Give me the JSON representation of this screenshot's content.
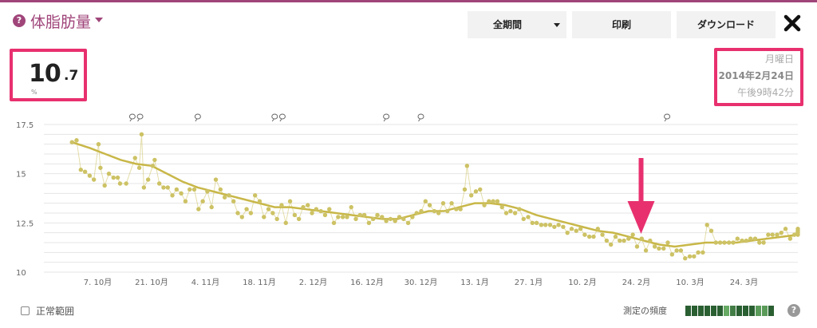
{
  "header": {
    "help_glyph": "?",
    "title": "体脂肪量",
    "period_button": "全期間",
    "print_button": "印刷",
    "download_button": "ダウンロード",
    "close_glyph": "✖"
  },
  "current": {
    "value_int": "10",
    "value_dec": ".7",
    "unit": "%"
  },
  "date": {
    "weekday": "月曜日",
    "date": "2014年2月24日",
    "time": "午後9時42分"
  },
  "footer": {
    "normal_range_label": "正常範囲",
    "frequency_label": "測定の頻度",
    "help_glyph": "?",
    "frequency_levels": [
      0.9,
      0.9,
      0.9,
      0.9,
      0.9,
      0.9,
      0.4,
      0.7,
      0.9,
      0.9,
      0.9,
      0.5,
      0.5,
      0.9
    ]
  },
  "colors": {
    "brand": "#a0457a",
    "highlight": "#e8306f",
    "trend": "#c8b748",
    "points": "#cdc264"
  },
  "chart_data": {
    "type": "line",
    "y_ticks": [
      "17.5",
      "15",
      "12.5",
      "10"
    ],
    "ylim": [
      10,
      17.5
    ],
    "x_ticks": [
      {
        "label": "7. 10月",
        "day": 14
      },
      {
        "label": "21. 10月",
        "day": 28
      },
      {
        "label": "4. 11月",
        "day": 42
      },
      {
        "label": "18. 11月",
        "day": 56
      },
      {
        "label": "2. 12月",
        "day": 70
      },
      {
        "label": "16. 12月",
        "day": 84
      },
      {
        "label": "30. 12月",
        "day": 98
      },
      {
        "label": "13. 1月",
        "day": 112
      },
      {
        "label": "27. 1月",
        "day": 126
      },
      {
        "label": "10. 2月",
        "day": 140
      },
      {
        "label": "24. 2月",
        "day": 154
      },
      {
        "label": "10. 3月",
        "day": 168
      },
      {
        "label": "24. 3月",
        "day": 182
      }
    ],
    "xlim": [
      0,
      196
    ],
    "comment_markers": [
      23,
      25,
      40,
      60,
      62,
      89,
      98,
      162
    ],
    "highlight_day": 154,
    "series": [
      {
        "points": [
          [
            7.3,
            16.6
          ],
          [
            8.5,
            16.7
          ],
          [
            9.6,
            15.2
          ],
          [
            10.7,
            15.1
          ],
          [
            11.9,
            14.9
          ],
          [
            13,
            14.7
          ],
          [
            14.2,
            16.5
          ],
          [
            14.7,
            15.3
          ],
          [
            15.8,
            14.4
          ],
          [
            16.9,
            15
          ],
          [
            18.1,
            14.8
          ],
          [
            19.2,
            14.8
          ],
          [
            19.8,
            14.5
          ],
          [
            21.4,
            14.5
          ],
          [
            23.7,
            15.8
          ],
          [
            24.8,
            15.3
          ],
          [
            25.4,
            17
          ],
          [
            26,
            14.3
          ],
          [
            27.1,
            14.7
          ],
          [
            28.3,
            15.4
          ],
          [
            28.8,
            15.7
          ],
          [
            30,
            14.5
          ],
          [
            31.1,
            14.3
          ],
          [
            32.2,
            14.3
          ],
          [
            33.4,
            13.9
          ],
          [
            34.5,
            14.2
          ],
          [
            35.7,
            14
          ],
          [
            36.8,
            13.6
          ],
          [
            37.9,
            14.2
          ],
          [
            39.1,
            14.2
          ],
          [
            40.2,
            13.2
          ],
          [
            41.3,
            13.6
          ],
          [
            42.5,
            14.1
          ],
          [
            43.6,
            13.3
          ],
          [
            44.7,
            14.7
          ],
          [
            45.9,
            14.2
          ],
          [
            47,
            13.8
          ],
          [
            48.1,
            13.9
          ],
          [
            49.3,
            13.6
          ],
          [
            50.4,
            13
          ],
          [
            51.5,
            12.8
          ],
          [
            52.7,
            13.2
          ],
          [
            53.8,
            13
          ],
          [
            54.9,
            13.9
          ],
          [
            56.1,
            13.6
          ],
          [
            57.2,
            12.8
          ],
          [
            58.4,
            13.2
          ],
          [
            59.5,
            13
          ],
          [
            60.6,
            12.7
          ],
          [
            61.8,
            13.4
          ],
          [
            62.9,
            12.5
          ],
          [
            64,
            13.6
          ],
          [
            65.2,
            12.9
          ],
          [
            66.3,
            12.7
          ],
          [
            67.4,
            13.3
          ],
          [
            68.6,
            13.4
          ],
          [
            69.7,
            13
          ],
          [
            70.8,
            13.2
          ],
          [
            72,
            13.1
          ],
          [
            73.1,
            12.9
          ],
          [
            74.2,
            13.2
          ],
          [
            75.4,
            12.5
          ],
          [
            76.5,
            12.8
          ],
          [
            77.7,
            12.8
          ],
          [
            78.8,
            12.8
          ],
          [
            79.9,
            13.3
          ],
          [
            81.1,
            12.7
          ],
          [
            82.2,
            12.9
          ],
          [
            83.3,
            12.9
          ],
          [
            84.5,
            12.5
          ],
          [
            85.6,
            12.7
          ],
          [
            86.7,
            12.9
          ],
          [
            87.9,
            12.8
          ],
          [
            89,
            12.6
          ],
          [
            90.1,
            12.7
          ],
          [
            91.3,
            12.6
          ],
          [
            92.4,
            12.8
          ],
          [
            93.5,
            12.7
          ],
          [
            94.7,
            12.5
          ],
          [
            95.8,
            12.8
          ],
          [
            96.9,
            13
          ],
          [
            98.1,
            13.1
          ],
          [
            99.2,
            13.6
          ],
          [
            100.3,
            13.4
          ],
          [
            101.5,
            13.1
          ],
          [
            102.6,
            13
          ],
          [
            103.8,
            13.5
          ],
          [
            104.9,
            13.1
          ],
          [
            106,
            13.5
          ],
          [
            107.2,
            13.2
          ],
          [
            108.3,
            13.2
          ],
          [
            109.4,
            14.2
          ],
          [
            110,
            15.4
          ],
          [
            111.1,
            13.9
          ],
          [
            112.3,
            14.1
          ],
          [
            113.4,
            14.2
          ],
          [
            114.5,
            13.4
          ],
          [
            115.7,
            13.6
          ],
          [
            116.8,
            13.6
          ],
          [
            117.9,
            13.6
          ],
          [
            119.1,
            13.3
          ],
          [
            120.2,
            13
          ],
          [
            121.3,
            13.1
          ],
          [
            122.5,
            13
          ],
          [
            123.6,
            13.2
          ],
          [
            124.7,
            12.7
          ],
          [
            125.9,
            12.8
          ],
          [
            127,
            12.5
          ],
          [
            128.1,
            12.5
          ],
          [
            129.3,
            12.4
          ],
          [
            130.4,
            12.4
          ],
          [
            131.6,
            12.4
          ],
          [
            132.7,
            12.3
          ],
          [
            133.8,
            12.4
          ],
          [
            135,
            12.3
          ],
          [
            136.1,
            12
          ],
          [
            137.2,
            12.2
          ],
          [
            138.4,
            12.1
          ],
          [
            139.5,
            12.2
          ],
          [
            140.6,
            11.9
          ],
          [
            141.8,
            11.8
          ],
          [
            142.9,
            11.8
          ],
          [
            144,
            12.2
          ],
          [
            145.2,
            11.9
          ],
          [
            146.3,
            11.6
          ],
          [
            147.4,
            11.4
          ],
          [
            148.6,
            11.8
          ],
          [
            149.7,
            11.6
          ],
          [
            150.8,
            11.6
          ],
          [
            152,
            11.7
          ],
          [
            153.1,
            11.9
          ],
          [
            154.2,
            11.3
          ],
          [
            155.4,
            11.7
          ],
          [
            156.5,
            11.1
          ],
          [
            157.6,
            11.6
          ],
          [
            158.8,
            11.3
          ],
          [
            159.9,
            11.2
          ],
          [
            161.1,
            11.2
          ],
          [
            162.2,
            11.5
          ],
          [
            163.3,
            10.9
          ],
          [
            164.5,
            11.1
          ],
          [
            165.6,
            11.1
          ],
          [
            166.7,
            10.7
          ],
          [
            167.9,
            10.8
          ],
          [
            169,
            10.8
          ],
          [
            170.1,
            11
          ],
          [
            171.3,
            11
          ],
          [
            172.4,
            12.4
          ],
          [
            173.5,
            12.1
          ],
          [
            174.7,
            11.5
          ],
          [
            175.8,
            11.5
          ],
          [
            176.9,
            11.5
          ],
          [
            178.1,
            11.5
          ],
          [
            179.2,
            11.5
          ],
          [
            180.3,
            11.7
          ],
          [
            181.5,
            11.6
          ],
          [
            182.6,
            11.6
          ],
          [
            183.7,
            11.7
          ],
          [
            184.9,
            11.7
          ],
          [
            186,
            11.5
          ],
          [
            187.1,
            11.5
          ],
          [
            188.3,
            11.9
          ],
          [
            189.4,
            11.9
          ],
          [
            190.6,
            11.9
          ],
          [
            191.7,
            12
          ],
          [
            192.8,
            12.2
          ],
          [
            194,
            11.7
          ],
          [
            195.1,
            11.9
          ],
          [
            196,
            12.2
          ],
          [
            196,
            11.9
          ],
          [
            196,
            12
          ],
          [
            196,
            12.1
          ]
        ]
      },
      {
        "trend": [
          [
            7.3,
            16.6
          ],
          [
            12,
            16.3
          ],
          [
            16,
            16
          ],
          [
            20,
            15.7
          ],
          [
            24,
            15.5
          ],
          [
            28,
            15.4
          ],
          [
            32,
            15
          ],
          [
            36,
            14.6
          ],
          [
            40,
            14.3
          ],
          [
            44,
            14.1
          ],
          [
            48,
            13.9
          ],
          [
            52,
            13.7
          ],
          [
            56,
            13.5
          ],
          [
            60,
            13.3
          ],
          [
            64,
            13.3
          ],
          [
            68,
            13.2
          ],
          [
            72,
            13.1
          ],
          [
            76,
            13
          ],
          [
            80,
            12.9
          ],
          [
            84,
            12.8
          ],
          [
            88,
            12.7
          ],
          [
            92,
            12.7
          ],
          [
            96,
            12.9
          ],
          [
            100,
            13.1
          ],
          [
            104,
            13.1
          ],
          [
            108,
            13.3
          ],
          [
            112,
            13.5
          ],
          [
            116,
            13.5
          ],
          [
            120,
            13.4
          ],
          [
            124,
            13.2
          ],
          [
            128,
            12.9
          ],
          [
            132,
            12.7
          ],
          [
            136,
            12.5
          ],
          [
            140,
            12.3
          ],
          [
            144,
            12.1
          ],
          [
            148,
            12
          ],
          [
            152,
            11.8
          ],
          [
            156,
            11.6
          ],
          [
            160,
            11.4
          ],
          [
            164,
            11.3
          ],
          [
            168,
            11.4
          ],
          [
            172,
            11.5
          ],
          [
            176,
            11.5
          ],
          [
            180,
            11.5
          ],
          [
            184,
            11.6
          ],
          [
            188,
            11.7
          ],
          [
            192,
            11.8
          ],
          [
            196,
            11.9
          ]
        ]
      }
    ]
  }
}
